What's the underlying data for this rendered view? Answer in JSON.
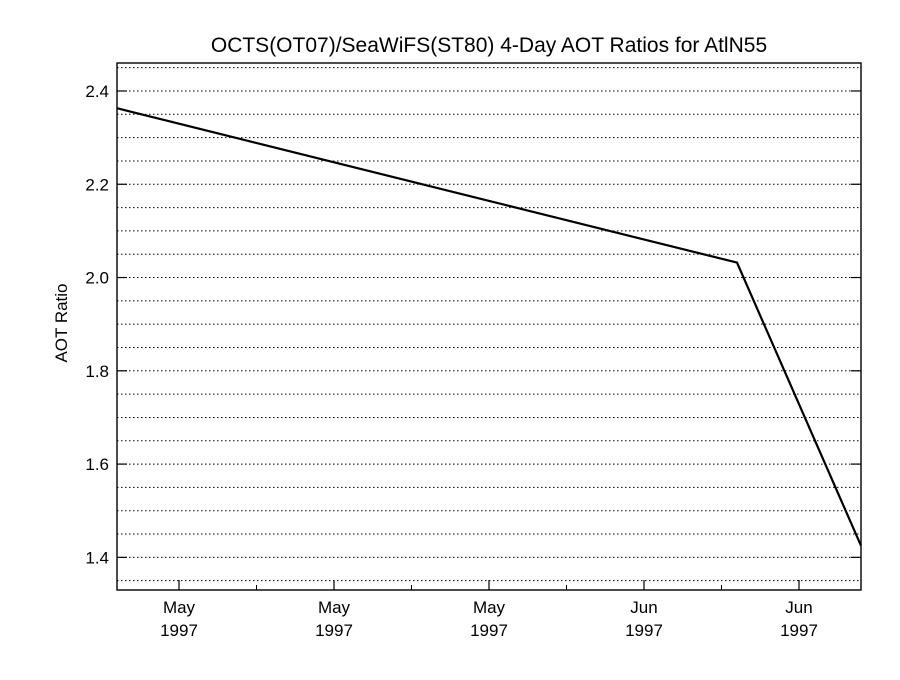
{
  "chart_data": {
    "type": "line",
    "title": "OCTS(OT07)/SeaWiFS(ST80) 4-Day AOT Ratios for AtlN55",
    "xlabel": "",
    "ylabel": "AOT Ratio",
    "x_tick_labels": [
      {
        "month": "May",
        "year": "1997"
      },
      {
        "month": "May",
        "year": "1997"
      },
      {
        "month": "May",
        "year": "1997"
      },
      {
        "month": "Jun",
        "year": "1997"
      },
      {
        "month": "Jun",
        "year": "1997"
      }
    ],
    "x_tick_dates": [
      "1997-05-05",
      "1997-05-15",
      "1997-05-25",
      "1997-06-04",
      "1997-06-14"
    ],
    "x_range": [
      "1997-05-01",
      "1997-06-18"
    ],
    "ylim": [
      1.33,
      2.46
    ],
    "y_ticks": [
      1.4,
      1.6,
      1.8,
      2.0,
      2.2,
      2.4
    ],
    "y_tick_labels": [
      "1.4",
      "1.6",
      "1.8",
      "2.0",
      "2.2",
      "2.4"
    ],
    "grid": true,
    "grid_style": "dotted horizontal",
    "series": [
      {
        "x": [
          "1997-05-01",
          "1997-06-10",
          "1997-06-18"
        ],
        "values": [
          2.363,
          2.032,
          1.425
        ]
      }
    ]
  }
}
